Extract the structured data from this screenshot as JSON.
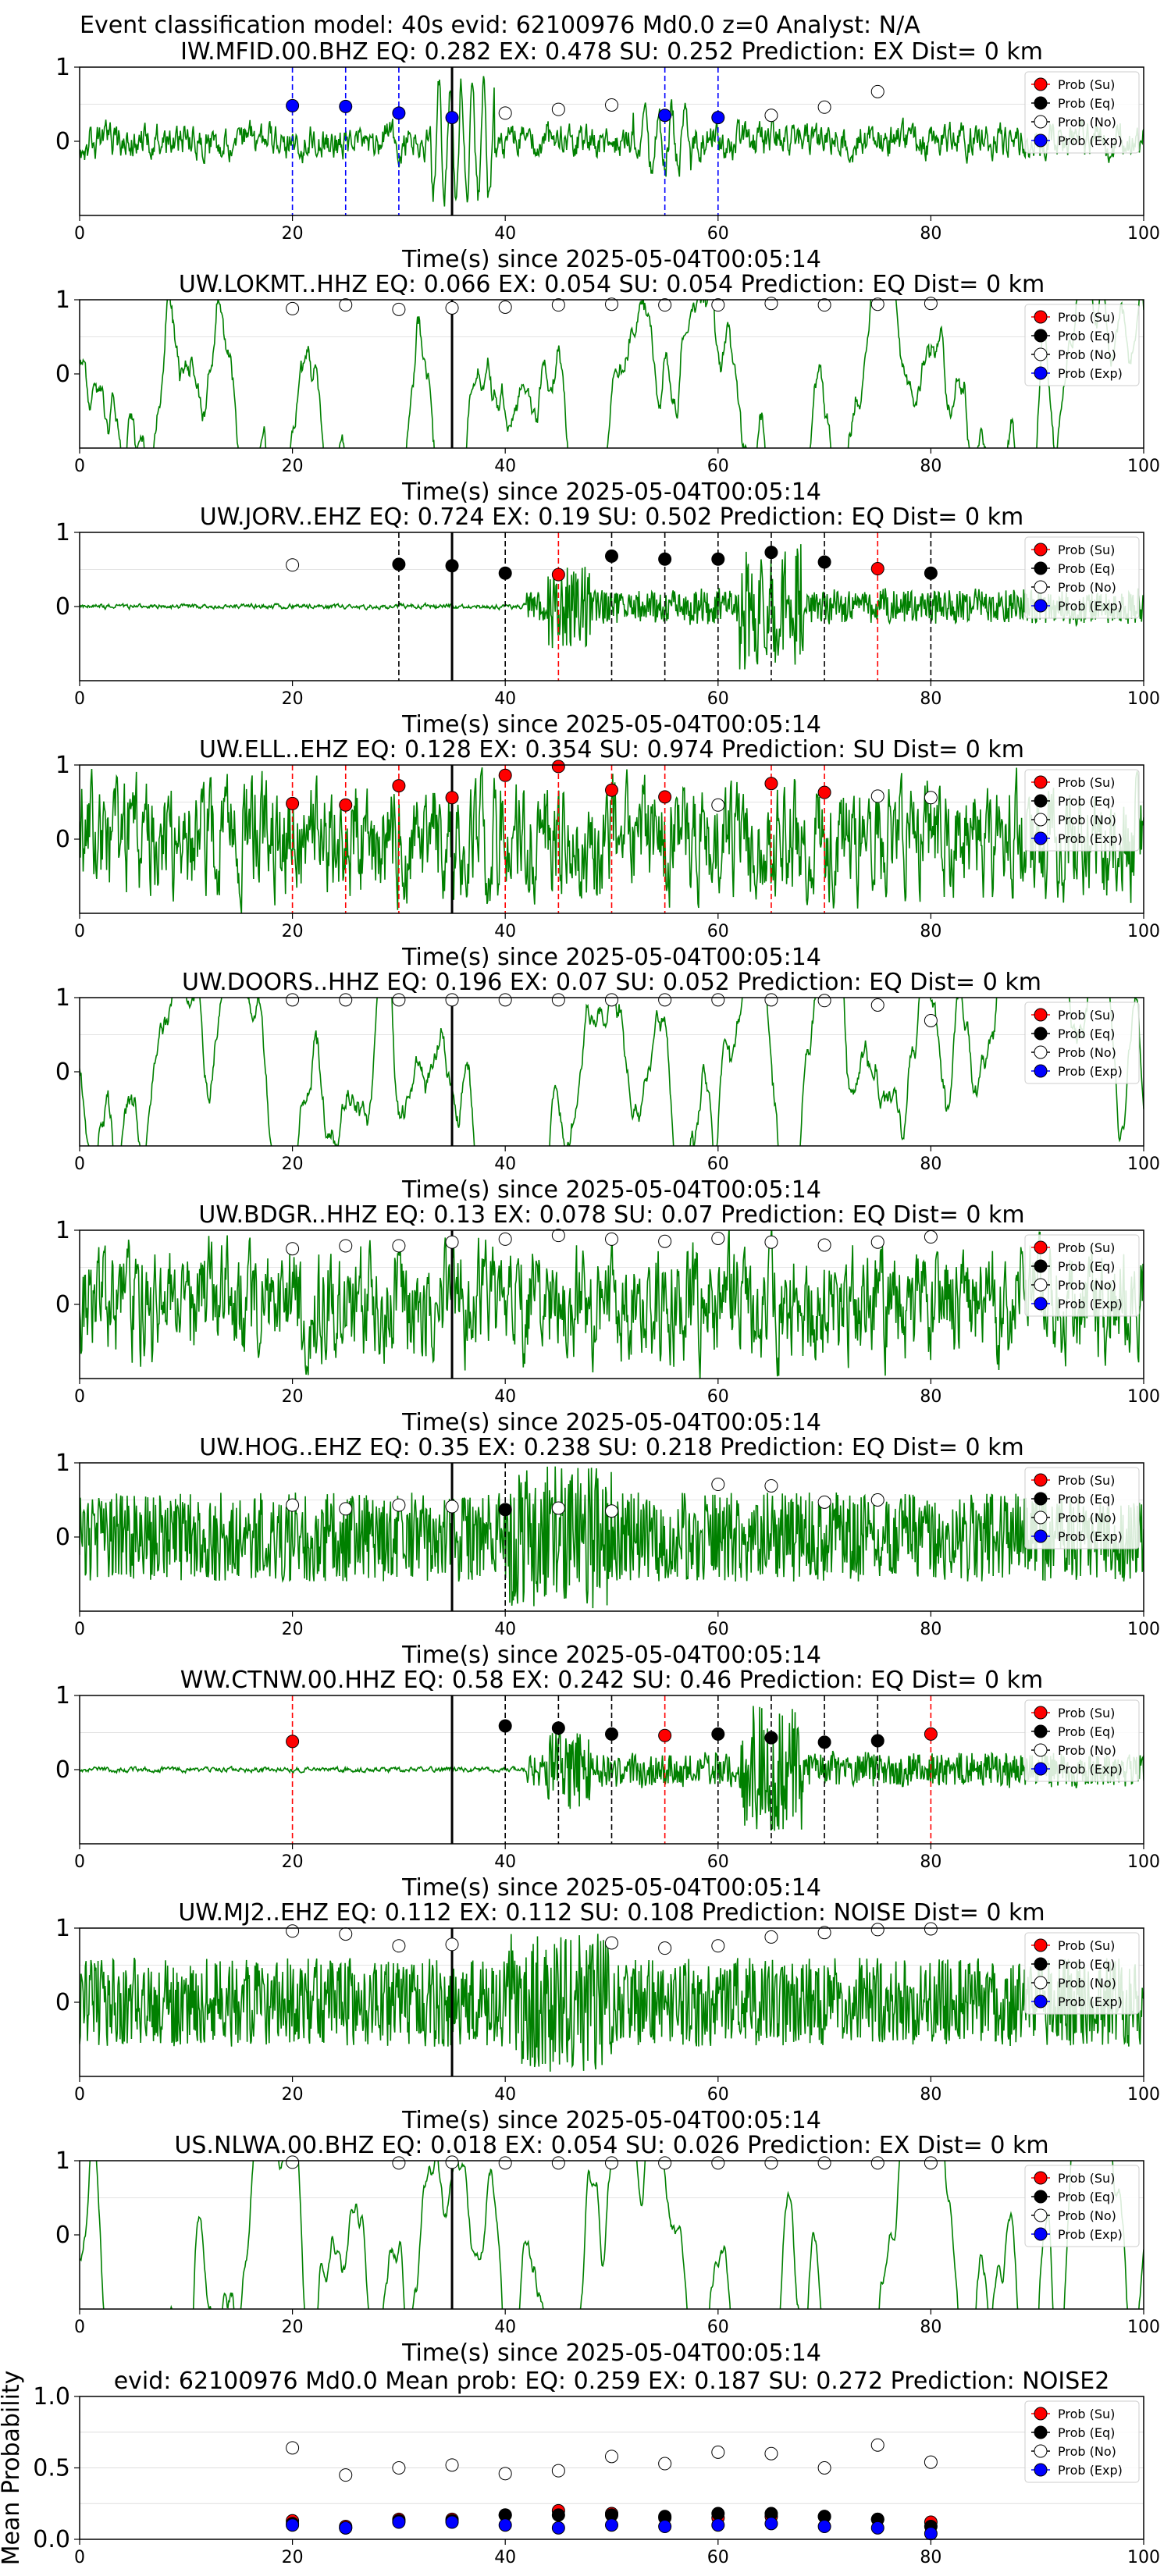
{
  "figure_title": "Event classification model: 40s evid: 62100976 Md0.0 z=0 Analyst: N/A",
  "legend_labels": [
    "Prob (Su)",
    "Prob (Eq)",
    "Prob (No)",
    "Prob (Exp)"
  ],
  "colors": {
    "waveform": "#008000",
    "su": "#ff0000",
    "eq": "#000000",
    "no": "#ffffff",
    "exp": "#0000ff",
    "event_line": "#000000",
    "frame": "#000000"
  },
  "chart_data": [
    {
      "type": "line",
      "title": "IW.MFID.00.BHZ   EQ: 0.282  EX: 0.478  SU: 0.252   Prediction: EX    Dist= 0 km",
      "xlabel": "Time(s) since 2025-05-04T00:05:14",
      "ylabel": "",
      "xlim": [
        0,
        100
      ],
      "ylim": [
        -1,
        1
      ],
      "xticks": [
        "0",
        "20",
        "40",
        "60",
        "80",
        "100"
      ],
      "yticks": [
        "1",
        "0"
      ],
      "event_time": 35,
      "waveform_style": "noisy-events",
      "points": [
        {
          "x": 20,
          "y": 0.48,
          "class": "exp"
        },
        {
          "x": 25,
          "y": 0.47,
          "class": "exp"
        },
        {
          "x": 30,
          "y": 0.38,
          "class": "exp"
        },
        {
          "x": 35,
          "y": 0.32,
          "class": "exp"
        },
        {
          "x": 40,
          "y": 0.38,
          "class": "no"
        },
        {
          "x": 45,
          "y": 0.43,
          "class": "no"
        },
        {
          "x": 50,
          "y": 0.49,
          "class": "no"
        },
        {
          "x": 55,
          "y": 0.35,
          "class": "exp"
        },
        {
          "x": 60,
          "y": 0.32,
          "class": "exp"
        },
        {
          "x": 65,
          "y": 0.35,
          "class": "no"
        },
        {
          "x": 70,
          "y": 0.46,
          "class": "no"
        },
        {
          "x": 75,
          "y": 0.67,
          "class": "no"
        }
      ]
    },
    {
      "type": "line",
      "title": "UW.LOKMT..HHZ   EQ: 0.066  EX: 0.054  SU: 0.054   Prediction: EQ    Dist= 0 km",
      "xlabel": "Time(s) since 2025-05-04T00:05:14",
      "ylabel": "",
      "xlim": [
        0,
        100
      ],
      "ylim": [
        -1,
        1
      ],
      "xticks": [
        "0",
        "20",
        "40",
        "60",
        "80",
        "100"
      ],
      "yticks": [
        "1",
        "0"
      ],
      "event_time": 35,
      "waveform_style": "smooth",
      "points": [
        {
          "x": 20,
          "y": 0.88,
          "class": "no"
        },
        {
          "x": 25,
          "y": 0.93,
          "class": "no"
        },
        {
          "x": 30,
          "y": 0.87,
          "class": "no"
        },
        {
          "x": 35,
          "y": 0.89,
          "class": "no"
        },
        {
          "x": 40,
          "y": 0.9,
          "class": "no"
        },
        {
          "x": 45,
          "y": 0.93,
          "class": "no"
        },
        {
          "x": 50,
          "y": 0.94,
          "class": "no"
        },
        {
          "x": 55,
          "y": 0.93,
          "class": "no"
        },
        {
          "x": 60,
          "y": 0.93,
          "class": "no"
        },
        {
          "x": 65,
          "y": 0.95,
          "class": "no"
        },
        {
          "x": 70,
          "y": 0.93,
          "class": "no"
        },
        {
          "x": 75,
          "y": 0.94,
          "class": "no"
        },
        {
          "x": 80,
          "y": 0.95,
          "class": "no"
        }
      ]
    },
    {
      "type": "line",
      "title": "UW.JORV..EHZ   EQ: 0.724  EX: 0.19  SU: 0.502   Prediction: EQ    Dist= 0 km",
      "xlabel": "Time(s) since 2025-05-04T00:05:14",
      "ylabel": "",
      "xlim": [
        0,
        100
      ],
      "ylim": [
        -1,
        1
      ],
      "xticks": [
        "0",
        "20",
        "40",
        "60",
        "80",
        "100"
      ],
      "yticks": [
        "1",
        "0"
      ],
      "event_time": 35,
      "waveform_style": "quiet-burst",
      "points": [
        {
          "x": 20,
          "y": 0.56,
          "class": "no"
        },
        {
          "x": 30,
          "y": 0.57,
          "class": "eq"
        },
        {
          "x": 35,
          "y": 0.55,
          "class": "eq"
        },
        {
          "x": 40,
          "y": 0.45,
          "class": "eq"
        },
        {
          "x": 45,
          "y": 0.43,
          "class": "su"
        },
        {
          "x": 50,
          "y": 0.68,
          "class": "eq"
        },
        {
          "x": 55,
          "y": 0.64,
          "class": "eq"
        },
        {
          "x": 60,
          "y": 0.64,
          "class": "eq"
        },
        {
          "x": 65,
          "y": 0.73,
          "class": "eq"
        },
        {
          "x": 70,
          "y": 0.6,
          "class": "eq"
        },
        {
          "x": 75,
          "y": 0.51,
          "class": "su"
        },
        {
          "x": 80,
          "y": 0.45,
          "class": "eq"
        }
      ]
    },
    {
      "type": "line",
      "title": "UW.ELL..EHZ   EQ: 0.128  EX: 0.354  SU: 0.974   Prediction: SU    Dist= 0 km",
      "xlabel": "Time(s) since 2025-05-04T00:05:14",
      "ylabel": "",
      "xlim": [
        0,
        100
      ],
      "ylim": [
        -1,
        1
      ],
      "xticks": [
        "0",
        "20",
        "40",
        "60",
        "80",
        "100"
      ],
      "yticks": [
        "1",
        "0"
      ],
      "event_time": 35,
      "waveform_style": "noisy",
      "points": [
        {
          "x": 20,
          "y": 0.48,
          "class": "su"
        },
        {
          "x": 25,
          "y": 0.46,
          "class": "su"
        },
        {
          "x": 30,
          "y": 0.72,
          "class": "su"
        },
        {
          "x": 35,
          "y": 0.56,
          "class": "su"
        },
        {
          "x": 40,
          "y": 0.86,
          "class": "su"
        },
        {
          "x": 45,
          "y": 0.98,
          "class": "su"
        },
        {
          "x": 50,
          "y": 0.66,
          "class": "su"
        },
        {
          "x": 55,
          "y": 0.57,
          "class": "su"
        },
        {
          "x": 60,
          "y": 0.46,
          "class": "no"
        },
        {
          "x": 65,
          "y": 0.75,
          "class": "su"
        },
        {
          "x": 70,
          "y": 0.63,
          "class": "su"
        },
        {
          "x": 75,
          "y": 0.58,
          "class": "no"
        },
        {
          "x": 80,
          "y": 0.56,
          "class": "no"
        }
      ]
    },
    {
      "type": "line",
      "title": "UW.DOORS..HHZ   EQ: 0.196  EX: 0.07  SU: 0.052   Prediction: EQ    Dist= 0 km",
      "xlabel": "Time(s) since 2025-05-04T00:05:14",
      "ylabel": "",
      "xlim": [
        0,
        100
      ],
      "ylim": [
        -1,
        1
      ],
      "xticks": [
        "0",
        "20",
        "40",
        "60",
        "80",
        "100"
      ],
      "yticks": [
        "1",
        "0"
      ],
      "event_time": 35,
      "waveform_style": "smooth",
      "points": [
        {
          "x": 20,
          "y": 0.97,
          "class": "no"
        },
        {
          "x": 25,
          "y": 0.97,
          "class": "no"
        },
        {
          "x": 30,
          "y": 0.97,
          "class": "no"
        },
        {
          "x": 35,
          "y": 0.97,
          "class": "no"
        },
        {
          "x": 40,
          "y": 0.97,
          "class": "no"
        },
        {
          "x": 45,
          "y": 0.97,
          "class": "no"
        },
        {
          "x": 50,
          "y": 0.97,
          "class": "no"
        },
        {
          "x": 55,
          "y": 0.97,
          "class": "no"
        },
        {
          "x": 60,
          "y": 0.97,
          "class": "no"
        },
        {
          "x": 65,
          "y": 0.97,
          "class": "no"
        },
        {
          "x": 70,
          "y": 0.96,
          "class": "no"
        },
        {
          "x": 75,
          "y": 0.9,
          "class": "no"
        },
        {
          "x": 80,
          "y": 0.69,
          "class": "no"
        }
      ]
    },
    {
      "type": "line",
      "title": "UW.BDGR..HHZ   EQ: 0.13  EX: 0.078  SU: 0.07   Prediction: EQ    Dist= 0 km",
      "xlabel": "Time(s) since 2025-05-04T00:05:14",
      "ylabel": "",
      "xlim": [
        0,
        100
      ],
      "ylim": [
        -1,
        1
      ],
      "xticks": [
        "0",
        "20",
        "40",
        "60",
        "80",
        "100"
      ],
      "yticks": [
        "1",
        "0"
      ],
      "event_time": 35,
      "waveform_style": "noisy",
      "points": [
        {
          "x": 20,
          "y": 0.75,
          "class": "no"
        },
        {
          "x": 25,
          "y": 0.79,
          "class": "no"
        },
        {
          "x": 30,
          "y": 0.79,
          "class": "no"
        },
        {
          "x": 35,
          "y": 0.84,
          "class": "no"
        },
        {
          "x": 40,
          "y": 0.88,
          "class": "no"
        },
        {
          "x": 45,
          "y": 0.93,
          "class": "no"
        },
        {
          "x": 50,
          "y": 0.88,
          "class": "no"
        },
        {
          "x": 55,
          "y": 0.85,
          "class": "no"
        },
        {
          "x": 60,
          "y": 0.89,
          "class": "no"
        },
        {
          "x": 65,
          "y": 0.84,
          "class": "no"
        },
        {
          "x": 70,
          "y": 0.8,
          "class": "no"
        },
        {
          "x": 75,
          "y": 0.84,
          "class": "no"
        },
        {
          "x": 80,
          "y": 0.91,
          "class": "no"
        }
      ]
    },
    {
      "type": "line",
      "title": "UW.HOG..EHZ   EQ: 0.35  EX: 0.238  SU: 0.218   Prediction: EQ    Dist= 0 km",
      "xlabel": "Time(s) since 2025-05-04T00:05:14",
      "ylabel": "",
      "xlim": [
        0,
        100
      ],
      "ylim": [
        -1,
        1
      ],
      "xticks": [
        "0",
        "20",
        "40",
        "60",
        "80",
        "100"
      ],
      "yticks": [
        "1",
        "0"
      ],
      "event_time": 35,
      "waveform_style": "dense",
      "points": [
        {
          "x": 20,
          "y": 0.43,
          "class": "no"
        },
        {
          "x": 25,
          "y": 0.38,
          "class": "no"
        },
        {
          "x": 30,
          "y": 0.43,
          "class": "no"
        },
        {
          "x": 35,
          "y": 0.41,
          "class": "no"
        },
        {
          "x": 40,
          "y": 0.37,
          "class": "eq"
        },
        {
          "x": 45,
          "y": 0.39,
          "class": "no"
        },
        {
          "x": 50,
          "y": 0.35,
          "class": "no"
        },
        {
          "x": 60,
          "y": 0.71,
          "class": "no"
        },
        {
          "x": 65,
          "y": 0.69,
          "class": "no"
        },
        {
          "x": 70,
          "y": 0.47,
          "class": "no"
        },
        {
          "x": 75,
          "y": 0.5,
          "class": "no"
        }
      ]
    },
    {
      "type": "line",
      "title": "WW.CTNW.00.HHZ   EQ: 0.58  EX: 0.242  SU: 0.46   Prediction: EQ    Dist= 0 km",
      "xlabel": "Time(s) since 2025-05-04T00:05:14",
      "ylabel": "",
      "xlim": [
        0,
        100
      ],
      "ylim": [
        -1,
        1
      ],
      "xticks": [
        "0",
        "20",
        "40",
        "60",
        "80",
        "100"
      ],
      "yticks": [
        "1",
        "0"
      ],
      "event_time": 35,
      "waveform_style": "quiet-burst",
      "points": [
        {
          "x": 20,
          "y": 0.38,
          "class": "su"
        },
        {
          "x": 40,
          "y": 0.59,
          "class": "eq"
        },
        {
          "x": 45,
          "y": 0.56,
          "class": "eq"
        },
        {
          "x": 50,
          "y": 0.48,
          "class": "eq"
        },
        {
          "x": 55,
          "y": 0.46,
          "class": "su"
        },
        {
          "x": 60,
          "y": 0.48,
          "class": "eq"
        },
        {
          "x": 65,
          "y": 0.43,
          "class": "eq"
        },
        {
          "x": 70,
          "y": 0.37,
          "class": "eq"
        },
        {
          "x": 75,
          "y": 0.39,
          "class": "eq"
        },
        {
          "x": 80,
          "y": 0.48,
          "class": "su"
        }
      ]
    },
    {
      "type": "line",
      "title": "UW.MJ2..EHZ   EQ: 0.112  EX: 0.112  SU: 0.108   Prediction: NOISE    Dist= 0 km",
      "xlabel": "Time(s) since 2025-05-04T00:05:14",
      "ylabel": "",
      "xlim": [
        0,
        100
      ],
      "ylim": [
        -1,
        1
      ],
      "xticks": [
        "0",
        "20",
        "40",
        "60",
        "80",
        "100"
      ],
      "yticks": [
        "1",
        "0"
      ],
      "event_time": 35,
      "waveform_style": "dense",
      "points": [
        {
          "x": 20,
          "y": 0.96,
          "class": "no"
        },
        {
          "x": 25,
          "y": 0.92,
          "class": "no"
        },
        {
          "x": 30,
          "y": 0.76,
          "class": "no"
        },
        {
          "x": 35,
          "y": 0.78,
          "class": "no"
        },
        {
          "x": 50,
          "y": 0.8,
          "class": "no"
        },
        {
          "x": 55,
          "y": 0.73,
          "class": "no"
        },
        {
          "x": 60,
          "y": 0.76,
          "class": "no"
        },
        {
          "x": 65,
          "y": 0.88,
          "class": "no"
        },
        {
          "x": 70,
          "y": 0.94,
          "class": "no"
        },
        {
          "x": 75,
          "y": 0.98,
          "class": "no"
        },
        {
          "x": 80,
          "y": 0.99,
          "class": "no"
        }
      ]
    },
    {
      "type": "line",
      "title": "US.NLWA.00.BHZ   EQ: 0.018  EX: 0.054  SU: 0.026   Prediction: EX    Dist= 0 km",
      "xlabel": "Time(s) since 2025-05-04T00:05:14",
      "ylabel": "",
      "xlim": [
        0,
        100
      ],
      "ylim": [
        -1,
        1
      ],
      "xticks": [
        "0",
        "20",
        "40",
        "60",
        "80",
        "100"
      ],
      "yticks": [
        "1",
        "0"
      ],
      "event_time": 35,
      "waveform_style": "smooth-wave",
      "points": [
        {
          "x": 20,
          "y": 0.98,
          "class": "no"
        },
        {
          "x": 30,
          "y": 0.97,
          "class": "no"
        },
        {
          "x": 35,
          "y": 0.98,
          "class": "no"
        },
        {
          "x": 40,
          "y": 0.97,
          "class": "no"
        },
        {
          "x": 45,
          "y": 0.97,
          "class": "no"
        },
        {
          "x": 50,
          "y": 0.97,
          "class": "no"
        },
        {
          "x": 55,
          "y": 0.97,
          "class": "no"
        },
        {
          "x": 60,
          "y": 0.97,
          "class": "no"
        },
        {
          "x": 65,
          "y": 0.97,
          "class": "no"
        },
        {
          "x": 70,
          "y": 0.97,
          "class": "no"
        },
        {
          "x": 75,
          "y": 0.97,
          "class": "no"
        },
        {
          "x": 80,
          "y": 0.97,
          "class": "no"
        }
      ]
    },
    {
      "type": "scatter",
      "title": "evid: 62100976  Md0.0   Mean prob:   EQ: 0.259  EX: 0.187  SU: 0.272   Prediction: NOISE2",
      "xlabel": "",
      "ylabel": "Mean Probability",
      "xlim": [
        0,
        100
      ],
      "ylim": [
        0,
        1
      ],
      "xticks": [
        "0",
        "20",
        "40",
        "60",
        "80",
        "100"
      ],
      "yticks": [
        "0.0",
        "0.5",
        "1.0"
      ],
      "series": [
        {
          "name": "Prob (Su)",
          "class": "su",
          "x": [
            20,
            25,
            30,
            35,
            40,
            45,
            50,
            55,
            60,
            65,
            70,
            75,
            80
          ],
          "values": [
            0.13,
            0.09,
            0.14,
            0.14,
            0.17,
            0.2,
            0.18,
            0.15,
            0.15,
            0.16,
            0.16,
            0.14,
            0.12
          ]
        },
        {
          "name": "Prob (Eq)",
          "class": "eq",
          "x": [
            20,
            25,
            30,
            35,
            40,
            45,
            50,
            55,
            60,
            65,
            70,
            75,
            80
          ],
          "values": [
            0.11,
            0.08,
            0.13,
            0.13,
            0.17,
            0.17,
            0.17,
            0.16,
            0.18,
            0.18,
            0.16,
            0.14,
            0.09
          ]
        },
        {
          "name": "Prob (No)",
          "class": "no",
          "x": [
            20,
            25,
            30,
            35,
            40,
            45,
            50,
            55,
            60,
            65,
            70,
            75,
            80
          ],
          "values": [
            0.64,
            0.45,
            0.5,
            0.52,
            0.46,
            0.48,
            0.58,
            0.53,
            0.61,
            0.6,
            0.5,
            0.66,
            0.54
          ]
        },
        {
          "name": "Prob (Exp)",
          "class": "exp",
          "x": [
            20,
            25,
            30,
            35,
            40,
            45,
            50,
            55,
            60,
            65,
            70,
            75,
            80
          ],
          "values": [
            0.1,
            0.08,
            0.12,
            0.12,
            0.1,
            0.08,
            0.1,
            0.09,
            0.1,
            0.11,
            0.09,
            0.08,
            0.04
          ]
        }
      ]
    }
  ]
}
